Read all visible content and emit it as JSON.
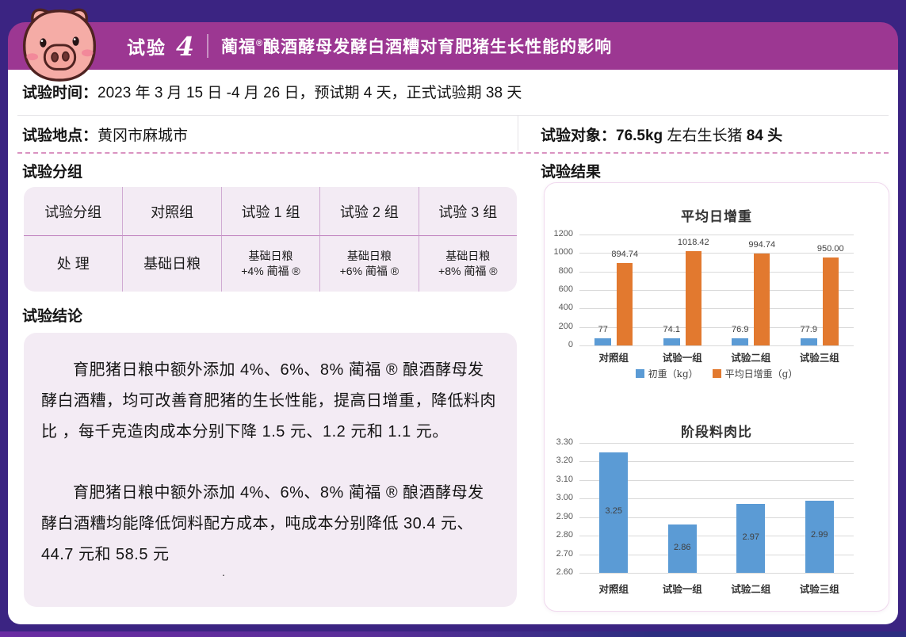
{
  "header": {
    "trial_label": "试验",
    "trial_number": "4",
    "title_brand": "蔺福",
    "title_reg": "®",
    "title_rest": "酿酒酵母发酵白酒糟对育肥猪生长性能的影响"
  },
  "info": {
    "time_label": "试验时间：",
    "time_value": "2023 年 3 月 15 日 -4 月 26 日，预试期 4 天，正式试验期 38 天",
    "location_label": "试验地点：",
    "location_value": "黄冈市麻城市",
    "subject_label": "试验对象：",
    "subject_weight": "76.5kg",
    "subject_middle": " 左右生长猪 ",
    "subject_count": "84 头"
  },
  "grouping": {
    "heading": "试验分组",
    "table": {
      "header_row": [
        "试验分组",
        "对照组",
        "试验 1 组",
        "试验 2 组",
        "试验 3 组"
      ],
      "treatment_row": [
        [
          "处 理"
        ],
        [
          "基础日粮"
        ],
        [
          "基础日粮",
          "+4% 蔺福 ®"
        ],
        [
          "基础日粮",
          "+6% 蔺福 ®"
        ],
        [
          "基础日粮",
          "+8% 蔺福 ®"
        ]
      ]
    }
  },
  "conclusion": {
    "heading": "试验结论",
    "paragraph1": "育肥猪日粮中额外添加 4%、6%、8% 蔺福 ® 酿酒酵母发酵白酒糟，均可改善育肥猪的生长性能，提高日增重，降低料肉比 ，每千克造肉成本分别下降 1.5 元、1.2 元和 1.1 元。",
    "paragraph2": "育肥猪日粮中额外添加 4%、6%、8% 蔺福 ® 酿酒酵母发酵白酒糟均能降低饲料配方成本，吨成本分别降低 30.4 元、44.7 元和 58.5 元",
    "stray_mark": "."
  },
  "results": {
    "heading": "试验结果"
  },
  "colors": {
    "frame": "#3B2482",
    "header_bar": "#9C3792",
    "panel_bg": "#F3EBF4",
    "dashed_divider": "#DA93C1",
    "orange": "#E2792F",
    "blue": "#5B9BD5"
  },
  "chart_data": [
    {
      "type": "bar",
      "title": "平均日增重",
      "categories": [
        "对照组",
        "试验一组",
        "试验二组",
        "试验三组"
      ],
      "series": [
        {
          "name": "初重（kg）",
          "color": "#5B9BD5",
          "values": [
            77,
            74.1,
            76.9,
            77.9
          ],
          "labels": [
            "77",
            "74.1",
            "76.9",
            "77.9"
          ]
        },
        {
          "name": "平均日增重（g）",
          "color": "#E2792F",
          "values": [
            894.74,
            1018.42,
            994.74,
            950.0
          ],
          "labels": [
            "894.74",
            "1018.42",
            "994.74",
            "950.00"
          ]
        }
      ],
      "xlabel": "",
      "ylabel": "",
      "ylim": [
        0,
        1200
      ],
      "yticks": [
        0,
        200,
        400,
        600,
        800,
        1000,
        1200
      ],
      "ytick_labels": [
        "0",
        "200",
        "400",
        "600",
        "800",
        "1000",
        "1200"
      ],
      "grid": true,
      "legend_position": "bottom"
    },
    {
      "type": "bar",
      "title": "阶段料肉比",
      "categories": [
        "对照组",
        "试验一组",
        "试验二组",
        "试验三组"
      ],
      "series": [
        {
          "name": "阶段料肉比",
          "color": "#5B9BD5",
          "values": [
            3.25,
            2.86,
            2.97,
            2.99
          ],
          "labels": [
            "3.25",
            "2.86",
            "2.97",
            "2.99"
          ]
        }
      ],
      "xlabel": "",
      "ylabel": "",
      "ylim": [
        2.6,
        3.3
      ],
      "yticks": [
        2.6,
        2.7,
        2.8,
        2.9,
        3.0,
        3.1,
        3.2,
        3.3
      ],
      "ytick_labels": [
        "2.60",
        "2.70",
        "2.80",
        "2.90",
        "3.00",
        "3.10",
        "3.20",
        "3.30"
      ],
      "grid": true,
      "legend_position": "none"
    }
  ]
}
